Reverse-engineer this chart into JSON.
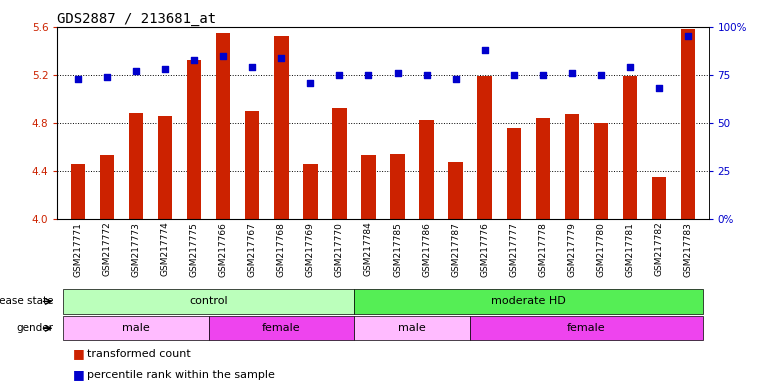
{
  "title": "GDS2887 / 213681_at",
  "samples": [
    "GSM217771",
    "GSM217772",
    "GSM217773",
    "GSM217774",
    "GSM217775",
    "GSM217766",
    "GSM217767",
    "GSM217768",
    "GSM217769",
    "GSM217770",
    "GSM217784",
    "GSM217785",
    "GSM217786",
    "GSM217787",
    "GSM217776",
    "GSM217777",
    "GSM217778",
    "GSM217779",
    "GSM217780",
    "GSM217781",
    "GSM217782",
    "GSM217783"
  ],
  "bar_values": [
    4.46,
    4.53,
    4.88,
    4.86,
    5.32,
    5.55,
    4.9,
    5.52,
    4.46,
    4.92,
    4.53,
    4.54,
    4.82,
    4.47,
    5.19,
    4.76,
    4.84,
    4.87,
    4.8,
    5.19,
    4.35,
    5.58
  ],
  "blue_values": [
    73,
    74,
    77,
    78,
    83,
    85,
    79,
    84,
    71,
    75,
    75,
    76,
    75,
    73,
    88,
    75,
    75,
    76,
    75,
    79,
    68,
    95
  ],
  "bar_color": "#cc2200",
  "blue_color": "#0000cc",
  "ylim": [
    4.0,
    5.6
  ],
  "yticks": [
    4.0,
    4.4,
    4.8,
    5.2,
    5.6
  ],
  "right_ylim": [
    0,
    100
  ],
  "right_yticks": [
    0,
    25,
    50,
    75,
    100
  ],
  "right_yticklabels": [
    "0%",
    "25",
    "50",
    "75",
    "100%"
  ],
  "hlines": [
    4.4,
    4.8,
    5.2
  ],
  "disease_state_groups": [
    {
      "label": "control",
      "start": 0,
      "end": 9,
      "color": "#bbffbb"
    },
    {
      "label": "moderate HD",
      "start": 10,
      "end": 21,
      "color": "#55ee55"
    }
  ],
  "gender_groups": [
    {
      "label": "male",
      "start": 0,
      "end": 4,
      "color": "#ffbbff"
    },
    {
      "label": "female",
      "start": 5,
      "end": 9,
      "color": "#ee44ee"
    },
    {
      "label": "male",
      "start": 10,
      "end": 13,
      "color": "#ffbbff"
    },
    {
      "label": "female",
      "start": 14,
      "end": 21,
      "color": "#ee44ee"
    }
  ],
  "disease_label": "disease state",
  "gender_label": "gender",
  "legend_items": [
    {
      "label": "transformed count",
      "color": "#cc2200"
    },
    {
      "label": "percentile rank within the sample",
      "color": "#0000cc"
    }
  ],
  "bar_width": 0.5,
  "xlabel_fontsize": 6.5,
  "title_fontsize": 10,
  "tick_fontsize": 7.5
}
